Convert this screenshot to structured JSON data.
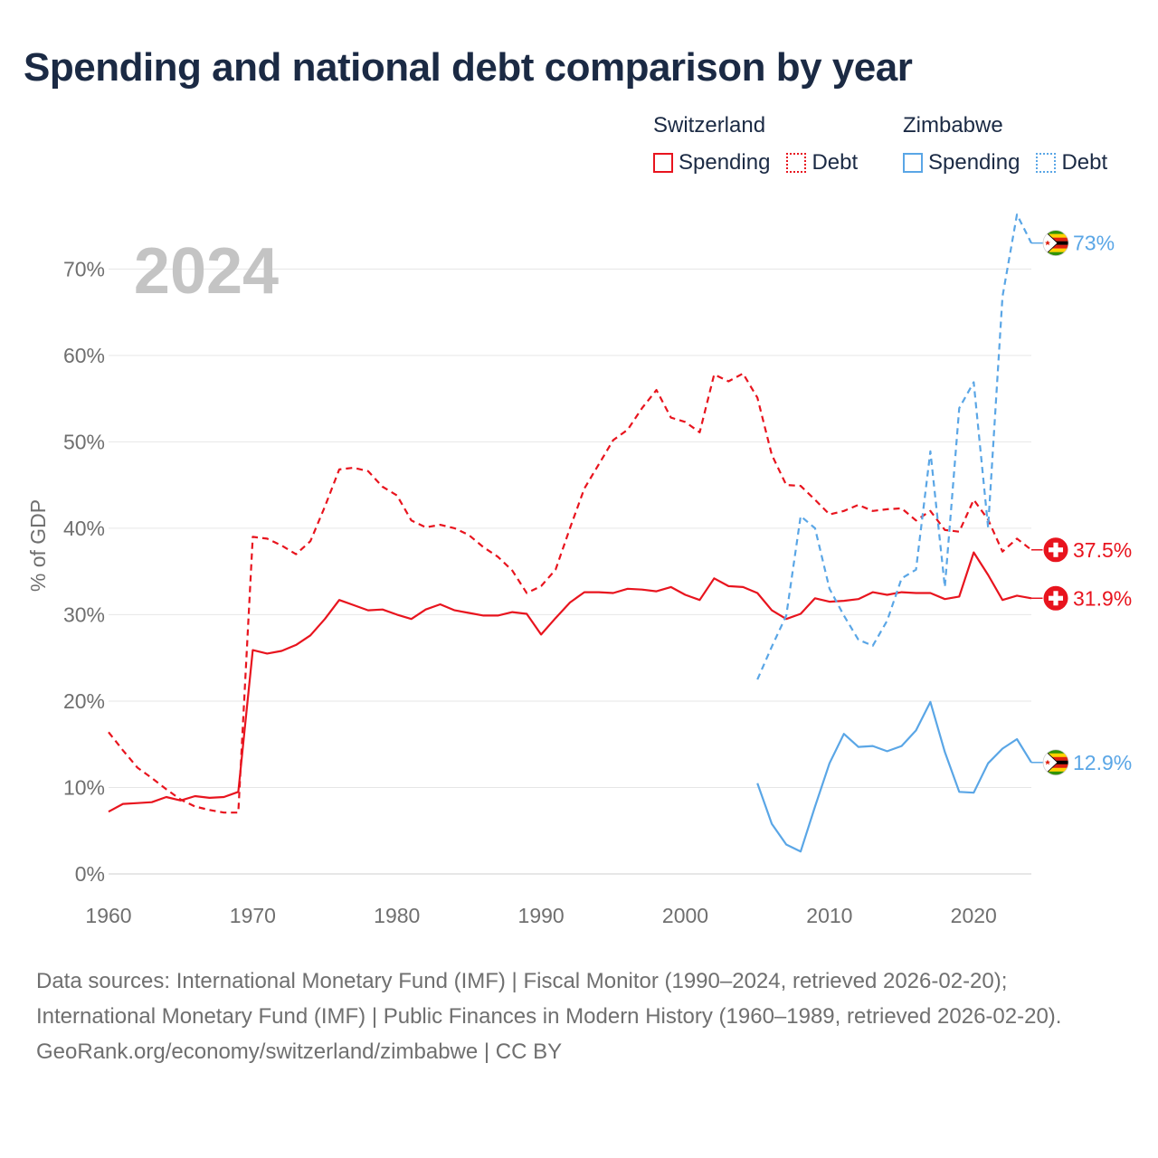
{
  "title": "Spending and national debt comparison by year",
  "legend": {
    "groups": [
      {
        "country": "Switzerland",
        "color": "#e8141e",
        "items": [
          {
            "label": "Spending",
            "style": "solid"
          },
          {
            "label": "Debt",
            "style": "dotted"
          }
        ]
      },
      {
        "country": "Zimbabwe",
        "color": "#5aa6e6",
        "items": [
          {
            "label": "Spending",
            "style": "solid"
          },
          {
            "label": "Debt",
            "style": "dotted"
          }
        ]
      }
    ]
  },
  "colors": {
    "switzerland": "#e8141e",
    "zimbabwe": "#5aa6e6",
    "grid": "#e6e6e6",
    "axis_text": "#6f6f6f",
    "year_watermark": "#c4c4c4"
  },
  "year_label": "2024",
  "footer": {
    "sources": "Data sources: International Monetary Fund (IMF) | Fiscal Monitor (1990–2024, retrieved 2026-02-20); International Monetary Fund (IMF) | Public Finances in Modern History (1960–1989, retrieved 2026-02-20).",
    "link": "GeoRank.org/economy/switzerland/zimbabwe | CC BY"
  },
  "chart_data": {
    "type": "line",
    "ylabel": "% of GDP",
    "xlabel": "",
    "xlim": [
      1960,
      2024
    ],
    "ylim": [
      0,
      76
    ],
    "x_ticks": [
      1960,
      1970,
      1980,
      1990,
      2000,
      2010,
      2020
    ],
    "y_ticks": [
      0,
      10,
      20,
      30,
      40,
      50,
      60,
      70
    ],
    "y_tick_labels": [
      "0%",
      "10%",
      "20%",
      "30%",
      "40%",
      "50%",
      "60%",
      "70%"
    ],
    "series": [
      {
        "name": "Switzerland Debt",
        "country": "Switzerland",
        "measure": "Debt",
        "style": "dashed",
        "color": "#e8141e",
        "end_label": "37.5%",
        "end_value": 37.5,
        "x": [
          1960,
          1961,
          1962,
          1963,
          1964,
          1965,
          1966,
          1967,
          1968,
          1969,
          1970,
          1971,
          1972,
          1973,
          1974,
          1975,
          1976,
          1977,
          1978,
          1979,
          1980,
          1981,
          1982,
          1983,
          1984,
          1985,
          1986,
          1987,
          1988,
          1989,
          1990,
          1991,
          1992,
          1993,
          1994,
          1995,
          1996,
          1997,
          1998,
          1999,
          2000,
          2001,
          2002,
          2003,
          2004,
          2005,
          2006,
          2007,
          2008,
          2009,
          2010,
          2011,
          2012,
          2013,
          2014,
          2015,
          2016,
          2017,
          2018,
          2019,
          2020,
          2021,
          2022,
          2023,
          2024
        ],
        "values": [
          16.4,
          14.3,
          12.3,
          11.1,
          9.8,
          8.6,
          7.8,
          7.4,
          7.1,
          7.1,
          39.0,
          38.8,
          38.0,
          37.0,
          38.5,
          42.5,
          46.8,
          47.0,
          46.6,
          44.8,
          43.8,
          40.9,
          40.1,
          40.4,
          40.0,
          39.2,
          37.8,
          36.7,
          35.1,
          32.5,
          33.3,
          35.2,
          40.0,
          44.6,
          47.4,
          50.2,
          51.4,
          53.9,
          56.0,
          52.8,
          52.3,
          51.1,
          57.8,
          57.0,
          57.9,
          55.1,
          48.5,
          45.0,
          44.9,
          43.3,
          41.6,
          42.0,
          42.7,
          42.0,
          42.2,
          42.3,
          40.9,
          42.0,
          39.8,
          39.6,
          43.3,
          41.0,
          37.3,
          38.8,
          37.5
        ]
      },
      {
        "name": "Switzerland Spending",
        "country": "Switzerland",
        "measure": "Spending",
        "style": "solid",
        "color": "#e8141e",
        "end_label": "31.9%",
        "end_value": 31.9,
        "x": [
          1960,
          1961,
          1962,
          1963,
          1964,
          1965,
          1966,
          1967,
          1968,
          1969,
          1970,
          1971,
          1972,
          1973,
          1974,
          1975,
          1976,
          1977,
          1978,
          1979,
          1980,
          1981,
          1982,
          1983,
          1984,
          1985,
          1986,
          1987,
          1988,
          1989,
          1990,
          1991,
          1992,
          1993,
          1994,
          1995,
          1996,
          1997,
          1998,
          1999,
          2000,
          2001,
          2002,
          2003,
          2004,
          2005,
          2006,
          2007,
          2008,
          2009,
          2010,
          2011,
          2012,
          2013,
          2014,
          2015,
          2016,
          2017,
          2018,
          2019,
          2020,
          2021,
          2022,
          2023,
          2024
        ],
        "values": [
          7.2,
          8.1,
          8.2,
          8.3,
          8.9,
          8.5,
          9.0,
          8.8,
          8.9,
          9.5,
          25.9,
          25.5,
          25.8,
          26.5,
          27.6,
          29.5,
          31.7,
          31.1,
          30.5,
          30.6,
          30.0,
          29.5,
          30.6,
          31.2,
          30.5,
          30.2,
          29.9,
          29.9,
          30.3,
          30.1,
          27.7,
          29.6,
          31.4,
          32.6,
          32.6,
          32.5,
          33.0,
          32.9,
          32.7,
          33.2,
          32.3,
          31.7,
          34.2,
          33.3,
          33.2,
          32.5,
          30.5,
          29.5,
          30.1,
          31.9,
          31.5,
          31.6,
          31.8,
          32.6,
          32.3,
          32.6,
          32.5,
          32.5,
          31.8,
          32.1,
          37.2,
          34.6,
          31.7,
          32.2,
          31.9
        ]
      },
      {
        "name": "Zimbabwe Debt",
        "country": "Zimbabwe",
        "measure": "Debt",
        "style": "dashed",
        "color": "#5aa6e6",
        "end_label": "73%",
        "end_value": 73.0,
        "x": [
          2005,
          2006,
          2007,
          2008,
          2009,
          2010,
          2011,
          2012,
          2013,
          2014,
          2015,
          2016,
          2017,
          2018,
          2019,
          2020,
          2021,
          2022,
          2023,
          2024
        ],
        "values": [
          22.5,
          26.3,
          29.9,
          41.4,
          40.0,
          33.0,
          29.9,
          27.1,
          26.4,
          29.3,
          34.2,
          35.2,
          48.9,
          33.2,
          53.9,
          56.9,
          40.1,
          66.8,
          76.3,
          73.0
        ]
      },
      {
        "name": "Zimbabwe Spending",
        "country": "Zimbabwe",
        "measure": "Spending",
        "style": "solid",
        "color": "#5aa6e6",
        "end_label": "12.9%",
        "end_value": 12.9,
        "x": [
          2005,
          2006,
          2007,
          2008,
          2009,
          2010,
          2011,
          2012,
          2013,
          2014,
          2015,
          2016,
          2017,
          2018,
          2019,
          2020,
          2021,
          2022,
          2023,
          2024
        ],
        "values": [
          10.5,
          5.8,
          3.4,
          2.6,
          7.8,
          12.8,
          16.2,
          14.7,
          14.8,
          14.2,
          14.8,
          16.6,
          19.9,
          14.1,
          9.5,
          9.4,
          12.8,
          14.5,
          15.6,
          12.9
        ]
      }
    ]
  }
}
